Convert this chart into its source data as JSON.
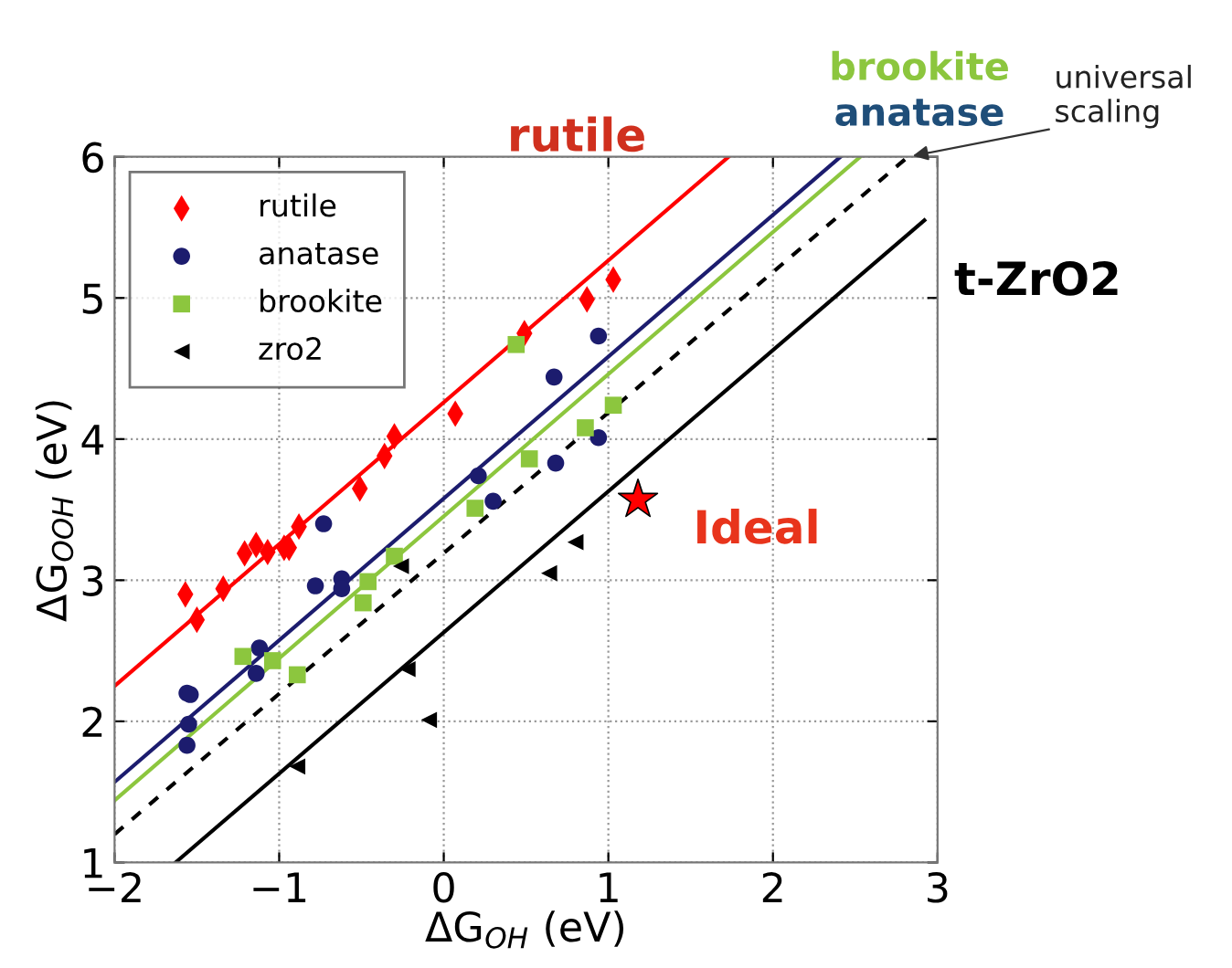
{
  "chart_data": {
    "type": "scatter",
    "xlabel": "ΔG$_{OH}$ (eV)",
    "ylabel": "ΔG$_{OOH}$ (eV)",
    "xlim": [
      -2,
      3
    ],
    "ylim": [
      1,
      6
    ],
    "xticks": [
      {
        "value": -2,
        "label": "−2"
      },
      {
        "value": -1,
        "label": "−1"
      },
      0,
      1,
      2,
      3
    ],
    "yticks": [
      1,
      2,
      3,
      4,
      5,
      6
    ],
    "grid": true,
    "legend": "top left",
    "series": [
      {
        "name": "rutile",
        "marker": "diamond",
        "color": "#ff0000",
        "x": [
          -1.57,
          -1.5,
          -1.34,
          -1.21,
          -1.14,
          -1.07,
          -0.97,
          -0.94,
          -0.88,
          -0.51,
          -0.36,
          -0.3,
          0.07,
          0.49,
          0.87,
          1.03
        ],
        "values": [
          2.9,
          2.72,
          2.94,
          3.19,
          3.25,
          3.2,
          3.23,
          3.23,
          3.38,
          3.65,
          3.88,
          4.02,
          4.18,
          4.75,
          4.99,
          5.13
        ]
      },
      {
        "name": "anatase",
        "marker": "circle",
        "color": "#1c1c6e",
        "x": [
          -1.56,
          -1.54,
          -1.55,
          -1.56,
          -1.12,
          -1.14,
          -0.73,
          -0.78,
          -0.62,
          -0.62,
          0.21,
          0.3,
          0.68,
          0.67,
          0.94,
          0.94
        ],
        "values": [
          2.2,
          2.19,
          1.98,
          1.83,
          2.52,
          2.34,
          3.4,
          2.96,
          3.01,
          2.94,
          3.74,
          3.56,
          3.83,
          4.44,
          4.73,
          4.01
        ]
      },
      {
        "name": "brookite",
        "marker": "square",
        "color": "#8cc63e",
        "x": [
          -1.22,
          -1.04,
          -0.89,
          -0.49,
          -0.46,
          -0.3,
          0.19,
          0.52,
          0.86,
          1.03,
          0.44
        ],
        "values": [
          2.46,
          2.43,
          2.33,
          2.84,
          2.99,
          3.17,
          3.51,
          3.86,
          4.08,
          4.24,
          4.67
        ]
      },
      {
        "name": "zro2",
        "marker": "triangle",
        "color": "#000000",
        "x": [
          -0.26,
          -0.22,
          -0.09,
          -0.89,
          0.64,
          0.8
        ],
        "values": [
          3.1,
          2.37,
          2.01,
          1.68,
          3.05,
          3.27
        ]
      },
      {
        "marker": "star",
        "color": "#ff0000",
        "x": [
          1.18
        ],
        "values": [
          3.57
        ]
      },
      {
        "type": "line",
        "line_style": "solid",
        "color": "#ff0000",
        "x": [
          -2,
          1.73
        ],
        "values": [
          2.25,
          6.0
        ]
      },
      {
        "type": "line",
        "line_style": "solid",
        "color": "#1c1c6e",
        "x": [
          -2,
          2.41
        ],
        "values": [
          1.57,
          6.0
        ]
      },
      {
        "type": "line",
        "line_style": "solid",
        "color": "#8cc63e",
        "x": [
          -2,
          2.53
        ],
        "values": [
          1.44,
          6.0
        ]
      },
      {
        "type": "line",
        "line_style": "dashed",
        "color": "#000000",
        "x": [
          -2,
          2.82
        ],
        "values": [
          1.2,
          6.0
        ]
      },
      {
        "type": "line",
        "line_style": "solid",
        "color": "#000000",
        "x": [
          -1.63,
          2.92
        ],
        "values": [
          1.0,
          5.55
        ]
      }
    ],
    "annotations": [
      {
        "text": "rutile",
        "x": 1.73,
        "y": 6.0
      },
      "brookite",
      "anatase",
      {
        "text": "universal\nscaling",
        "x": 2.82,
        "y": 6.0
      },
      {
        "text": "t-ZrO2",
        "x": 2.92,
        "y": 5.55
      },
      {
        "text": "Ideal",
        "x": 1.18,
        "y": 3.57
      }
    ]
  }
}
